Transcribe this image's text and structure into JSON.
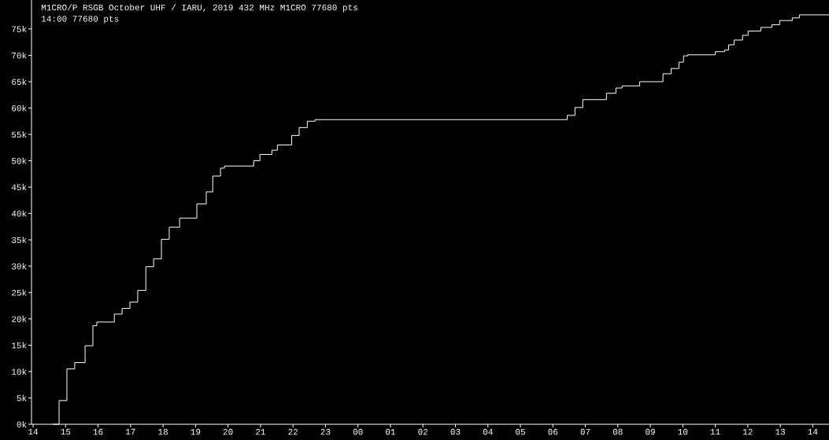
{
  "chart_data": {
    "type": "step",
    "title": "M1CRO/P      RSGB October UHF / IARU, 2019  432 MHz  M1CRO  77680 pts",
    "subtitle": "14:00  77680 pts",
    "x": [
      14.61,
      14.8,
      15.04,
      15.28,
      15.6,
      15.84,
      15.96,
      16.3,
      16.5,
      16.74,
      16.98,
      17.22,
      17.47,
      17.71,
      17.95,
      18.19,
      18.51,
      19.04,
      19.33,
      19.53,
      19.77,
      19.89,
      20.79,
      20.98,
      21.35,
      21.52,
      21.96,
      22.19,
      22.44,
      22.68,
      30.44,
      30.68,
      30.92,
      31.65,
      31.94,
      32.13,
      32.67,
      33.39,
      33.64,
      33.88,
      34.02,
      34.15,
      35.0,
      35.29,
      35.41,
      35.58,
      35.84,
      36.01,
      36.4,
      36.74,
      36.98,
      37.37,
      37.59,
      38.5
    ],
    "series": [
      {
        "color": "#ffffff",
        "values": [
          0,
          4500,
          10500,
          11700,
          14900,
          18700,
          19400,
          19400,
          20900,
          22000,
          23200,
          25400,
          29900,
          31400,
          35100,
          37400,
          39100,
          41800,
          44100,
          47100,
          48600,
          49000,
          50000,
          51200,
          52000,
          53000,
          54800,
          56300,
          57500,
          57800,
          58600,
          60100,
          61600,
          62800,
          63800,
          64200,
          65000,
          66500,
          67500,
          68700,
          69900,
          70100,
          70700,
          71000,
          72000,
          72900,
          73800,
          74600,
          75300,
          75800,
          76600,
          77100,
          77680,
          77680
        ]
      }
    ],
    "xlim": [
      13.95,
      38.5
    ],
    "ylim": [
      0,
      80500
    ],
    "xticks": [
      {
        "value": 14,
        "label": "14"
      },
      {
        "value": 15,
        "label": "15"
      },
      {
        "value": 16,
        "label": "16"
      },
      {
        "value": 17,
        "label": "17"
      },
      {
        "value": 18,
        "label": "18"
      },
      {
        "value": 19,
        "label": "19"
      },
      {
        "value": 20,
        "label": "20"
      },
      {
        "value": 21,
        "label": "21"
      },
      {
        "value": 22,
        "label": "22"
      },
      {
        "value": 23,
        "label": "23"
      },
      {
        "value": 24,
        "label": "00"
      },
      {
        "value": 25,
        "label": "01"
      },
      {
        "value": 26,
        "label": "02"
      },
      {
        "value": 27,
        "label": "03"
      },
      {
        "value": 28,
        "label": "04"
      },
      {
        "value": 29,
        "label": "05"
      },
      {
        "value": 30,
        "label": "06"
      },
      {
        "value": 31,
        "label": "07"
      },
      {
        "value": 32,
        "label": "08"
      },
      {
        "value": 33,
        "label": "09"
      },
      {
        "value": 34,
        "label": "10"
      },
      {
        "value": 35,
        "label": "11"
      },
      {
        "value": 36,
        "label": "12"
      },
      {
        "value": 37,
        "label": "13"
      },
      {
        "value": 38,
        "label": "14"
      }
    ],
    "yticks": [
      {
        "value": 0,
        "label": "0k"
      },
      {
        "value": 5000,
        "label": "5k"
      },
      {
        "value": 10000,
        "label": "10k"
      },
      {
        "value": 15000,
        "label": "15k"
      },
      {
        "value": 20000,
        "label": "20k"
      },
      {
        "value": 25000,
        "label": "25k"
      },
      {
        "value": 30000,
        "label": "30k"
      },
      {
        "value": 35000,
        "label": "35k"
      },
      {
        "value": 40000,
        "label": "40k"
      },
      {
        "value": 45000,
        "label": "45k"
      },
      {
        "value": 50000,
        "label": "50k"
      },
      {
        "value": 55000,
        "label": "55k"
      },
      {
        "value": 60000,
        "label": "60k"
      },
      {
        "value": 65000,
        "label": "65k"
      },
      {
        "value": 70000,
        "label": "70k"
      },
      {
        "value": 75000,
        "label": "75k"
      }
    ],
    "grid": false
  }
}
